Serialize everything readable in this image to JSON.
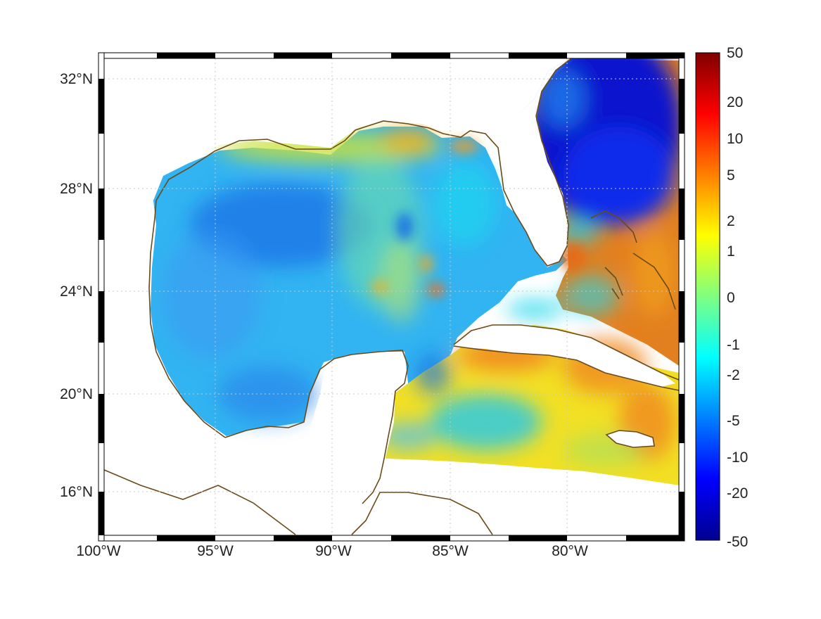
{
  "map": {
    "lon_range": [
      -100,
      -75
    ],
    "lat_range": [
      14.2,
      32.9
    ],
    "lon_ticks": [
      "100°W",
      "95°W",
      "90°W",
      "85°W",
      "80°W"
    ],
    "lat_ticks": [
      "32°N",
      "28°N",
      "24°N",
      "20°N",
      "16°N"
    ],
    "grid": "dotted",
    "frame": "alternating black and white border"
  },
  "colorbar": {
    "colormap": "jet",
    "labels": [
      "50",
      "20",
      "10",
      "5",
      "2",
      "1",
      "0",
      "-1",
      "-2",
      "-5",
      "-10",
      "-20",
      "-50"
    ]
  },
  "colors": {
    "coastline": "#6b4a1a",
    "grid": "#c8c8c8",
    "land": "#ffffff"
  }
}
